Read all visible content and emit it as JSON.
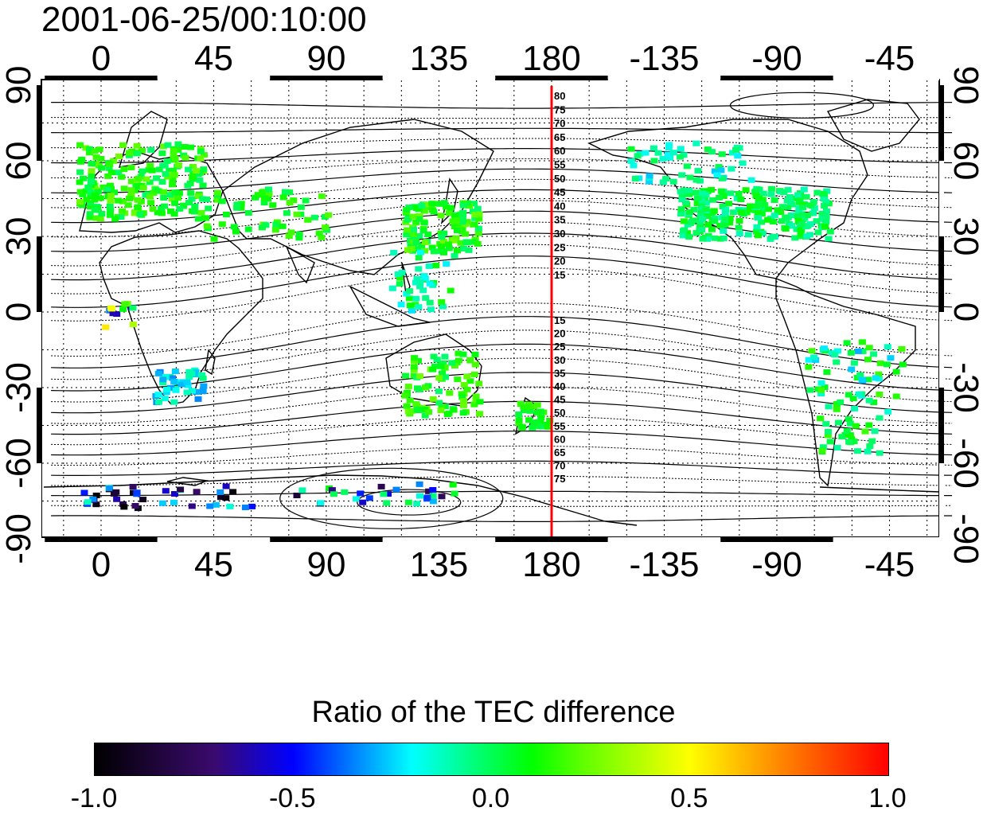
{
  "timestamp": "2001-06-25/00:10:00",
  "axes": {
    "top_ticks": [
      "0",
      "45",
      "90",
      "135",
      "180",
      "-135",
      "-90",
      "-45"
    ],
    "bottom_ticks": [
      "0",
      "45",
      "90",
      "135",
      "180",
      "-135",
      "-90",
      "-45"
    ],
    "left_ticks": [
      "90",
      "60",
      "30",
      "0",
      "-30",
      "-60",
      "-90"
    ],
    "right_ticks": [
      "90",
      "60",
      "30",
      "0",
      "-30",
      "-60",
      "-90"
    ],
    "lon_range": [
      -20,
      340
    ],
    "lat_range": [
      -90,
      90
    ]
  },
  "meridian_line": {
    "lon": 180,
    "color": "#ff0000"
  },
  "contour_labels_north": [
    "80",
    "75",
    "70",
    "65",
    "60",
    "55",
    "50",
    "45",
    "40",
    "35",
    "30",
    "25",
    "20",
    "15"
  ],
  "contour_labels_south": [
    "15",
    "20",
    "25",
    "30",
    "35",
    "40",
    "45",
    "50",
    "55",
    "60",
    "65",
    "70",
    "75"
  ],
  "colorbar": {
    "title": "Ratio of the TEC difference",
    "ticks": [
      "-1.0",
      "-0.5",
      "0.0",
      "0.5",
      "1.0"
    ],
    "range": [
      -1.0,
      1.0
    ]
  }
}
